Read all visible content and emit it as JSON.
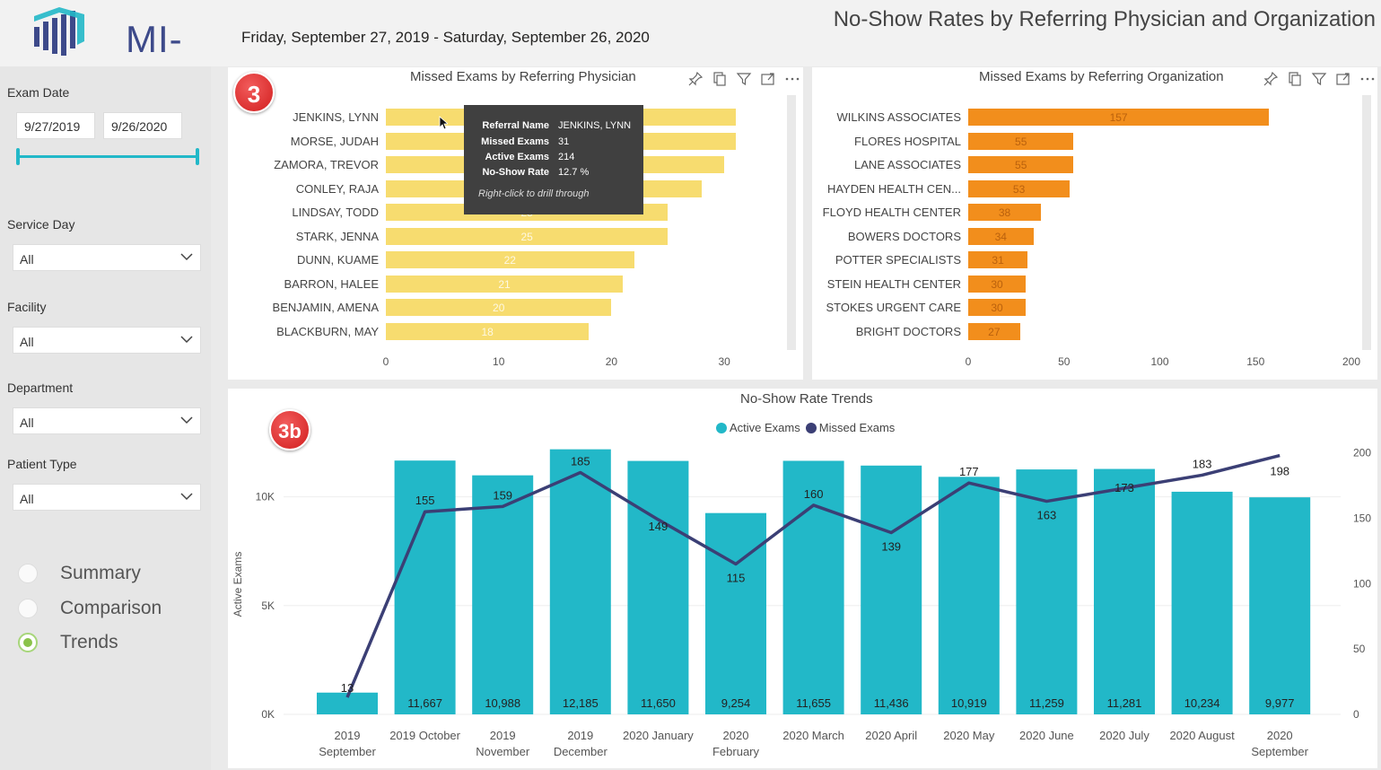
{
  "header": {
    "logo_text": "MI-BI",
    "date_range": "Friday, September 27, 2019 - Saturday, September 26, 2020",
    "title": "No-Show Rates by Referring Physician and Organization"
  },
  "sidebar": {
    "exam_date": {
      "label": "Exam Date",
      "start": "9/27/2019",
      "end": "9/26/2020"
    },
    "service_day": {
      "label": "Service Day",
      "value": "All"
    },
    "facility": {
      "label": "Facility",
      "value": "All"
    },
    "department": {
      "label": "Department",
      "value": "All"
    },
    "patient_type": {
      "label": "Patient Type",
      "value": "All"
    },
    "nav": [
      {
        "label": "Summary",
        "selected": false
      },
      {
        "label": "Comparison",
        "selected": false
      },
      {
        "label": "Trends",
        "selected": true
      }
    ]
  },
  "badges": {
    "physician": "3",
    "trends": "3b"
  },
  "icons": [
    "pin-icon",
    "copy-icon",
    "filter-icon",
    "focus-mode-icon",
    "more-options-icon"
  ],
  "colors": {
    "physician_bar": "#f7dc6f",
    "organization_bar": "#f28e1c",
    "active_bar": "#22b8c8",
    "missed_line": "#3b3f75",
    "badge": "#d21e1e"
  },
  "tooltip": {
    "rows": [
      {
        "key": "Referral Name",
        "value": "JENKINS, LYNN"
      },
      {
        "key": "Missed Exams",
        "value": "31"
      },
      {
        "key": "Active Exams",
        "value": "214"
      },
      {
        "key": "No-Show Rate",
        "value": "12.7 %"
      }
    ],
    "note": "Right-click to drill through"
  },
  "chart_data": [
    {
      "type": "bar",
      "orientation": "horizontal",
      "title": "Missed Exams by Referring Physician",
      "categories": [
        "JENKINS, LYNN",
        "MORSE, JUDAH",
        "ZAMORA, TREVOR",
        "CONLEY, RAJA",
        "LINDSAY, TODD",
        "STARK, JENNA",
        "DUNN, KUAME",
        "BARRON, HALEE",
        "BENJAMIN, AMENA",
        "BLACKBURN, MAY"
      ],
      "values": [
        31,
        31,
        30,
        28,
        25,
        25,
        22,
        21,
        20,
        18
      ],
      "data_labels": [
        "",
        "",
        "",
        "",
        "25",
        "25",
        "22",
        "21",
        "20",
        "18"
      ],
      "xlim": [
        0,
        35
      ],
      "ticks": [
        "0",
        "10",
        "20",
        "30"
      ]
    },
    {
      "type": "bar",
      "orientation": "horizontal",
      "title": "Missed Exams by Referring Organization",
      "categories": [
        "WILKINS ASSOCIATES",
        "FLORES HOSPITAL",
        "LANE ASSOCIATES",
        "HAYDEN HEALTH CEN...",
        "FLOYD HEALTH CENTER",
        "BOWERS DOCTORS",
        "POTTER SPECIALISTS",
        "STEIN HEALTH CENTER",
        "STOKES URGENT CARE",
        "BRIGHT DOCTORS"
      ],
      "values": [
        157,
        55,
        55,
        53,
        38,
        34,
        31,
        30,
        30,
        27
      ],
      "xlim": [
        0,
        200
      ],
      "ticks": [
        "0",
        "50",
        "100",
        "150",
        "200"
      ]
    },
    {
      "type": "bar",
      "title": "No-Show Rate Trends",
      "ylabel": "Active Exams",
      "categories": [
        [
          "2019",
          "September"
        ],
        [
          "2019 October"
        ],
        [
          "2019",
          "November"
        ],
        [
          "2019",
          "December"
        ],
        [
          "2020 January"
        ],
        [
          "2020",
          "February"
        ],
        [
          "2020 March"
        ],
        [
          "2020 April"
        ],
        [
          "2020 May"
        ],
        [
          "2020 June"
        ],
        [
          "2020 July"
        ],
        [
          "2020 August"
        ],
        [
          "2020",
          "September"
        ]
      ],
      "series": [
        {
          "name": "Active Exams",
          "type": "bar",
          "axis": "left",
          "values": [
            1000,
            11667,
            10988,
            12185,
            11650,
            9254,
            11655,
            11436,
            10919,
            11259,
            11281,
            10234,
            9977
          ],
          "labels": [
            "",
            "11,667",
            "10,988",
            "12,185",
            "11,650",
            "9,254",
            "11,655",
            "11,436",
            "10,919",
            "11,259",
            "11,281",
            "10,234",
            "9,977"
          ]
        },
        {
          "name": "Missed Exams",
          "type": "line",
          "axis": "right",
          "values": [
            13,
            155,
            159,
            185,
            149,
            115,
            160,
            139,
            177,
            163,
            173,
            183,
            198
          ],
          "labels": [
            "13",
            "155",
            "159",
            "185",
            "149",
            "115",
            "160",
            "139",
            "177",
            "163",
            "173",
            "183",
            "198"
          ]
        }
      ],
      "ylim_left": [
        0,
        12500
      ],
      "ticks_left": [
        "0K",
        "5K",
        "10K"
      ],
      "ylim_right": [
        0,
        208
      ],
      "ticks_right": [
        "0",
        "50",
        "100",
        "150",
        "200"
      ]
    }
  ]
}
